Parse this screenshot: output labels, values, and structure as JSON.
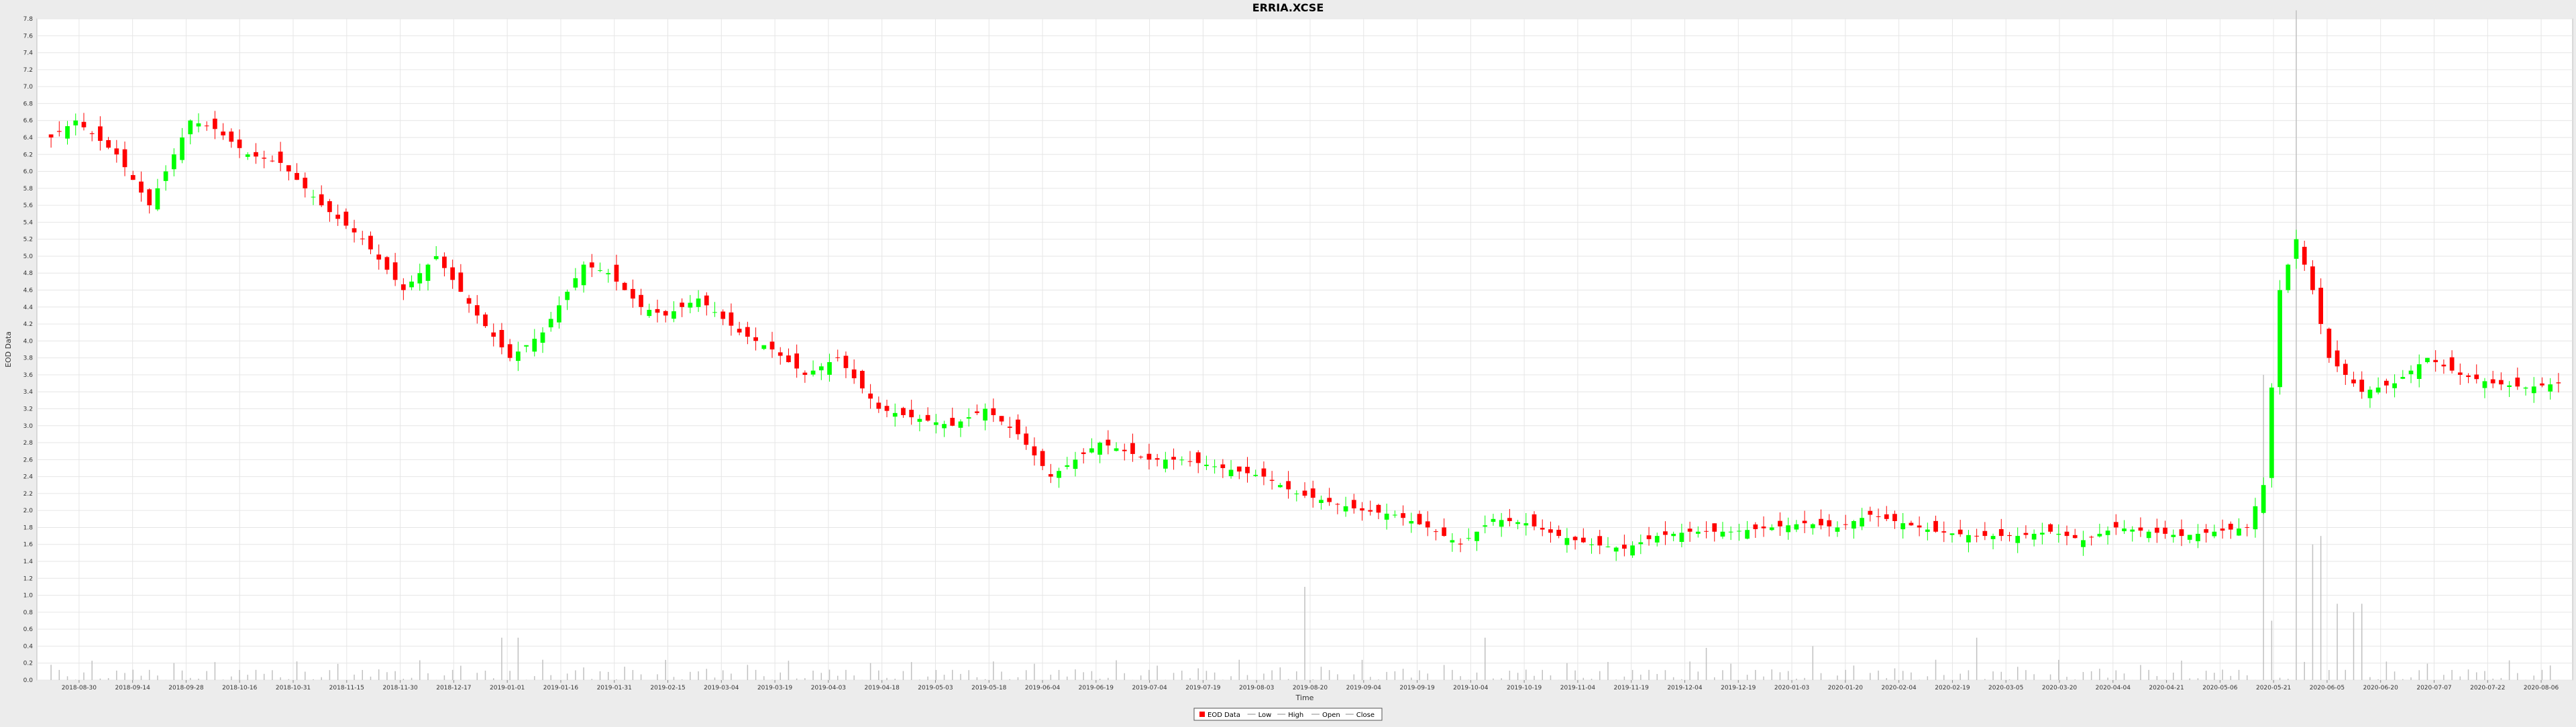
{
  "chart_data": {
    "type": "candlestick",
    "title": "ERRIA.XCSE",
    "xlabel": "Time",
    "ylabel": "EOD Data",
    "ylim": [
      0.0,
      7.8
    ],
    "y_ticks": [
      0.0,
      0.2,
      0.4,
      0.6,
      0.8,
      1.0,
      1.2,
      1.4,
      1.6,
      1.8,
      2.0,
      2.2,
      2.4,
      2.6,
      2.8,
      3.0,
      3.2,
      3.4,
      3.6,
      3.8,
      4.0,
      4.2,
      4.4,
      4.6,
      4.8,
      5.0,
      5.2,
      5.4,
      5.6,
      5.8,
      6.0,
      6.2,
      6.4,
      6.6,
      6.8,
      7.0,
      7.2,
      7.4,
      7.6,
      7.8
    ],
    "x_ticks": [
      "2018-08-30",
      "2018-09-14",
      "2018-09-28",
      "2018-10-16",
      "2018-10-31",
      "2018-11-15",
      "2018-11-30",
      "2018-12-17",
      "2019-01-01",
      "2019-01-16",
      "2019-01-31",
      "2019-02-15",
      "2019-03-04",
      "2019-03-19",
      "2019-04-03",
      "2019-04-18",
      "2019-05-03",
      "2019-05-18",
      "2019-06-04",
      "2019-06-19",
      "2019-07-04",
      "2019-07-19",
      "2019-08-03",
      "2019-08-20",
      "2019-09-04",
      "2019-09-19",
      "2019-10-04",
      "2019-10-19",
      "2019-11-04",
      "2019-11-19",
      "2019-12-04",
      "2019-12-19",
      "2020-01-03",
      "2020-01-20",
      "2020-02-04",
      "2020-02-19",
      "2020-03-05",
      "2020-03-20",
      "2020-04-04",
      "2020-04-21",
      "2020-05-06",
      "2020-05-21",
      "2020-06-05",
      "2020-06-20",
      "2020-07-07",
      "2020-07-22",
      "2020-08-06"
    ],
    "grid": true,
    "legend_position": "bottom",
    "colors": {
      "up": "#00ff00",
      "down": "#ff0000",
      "volume": "#c0c0c0",
      "grid": "#e6e6e6",
      "plot_bg": "#ffffff",
      "page_bg": "#ececec"
    },
    "legend": [
      "EOD Data",
      "Low",
      "High",
      "Open",
      "Close"
    ],
    "series": [
      {
        "name": "Close",
        "anchors": [
          [
            0,
            6.4
          ],
          [
            3,
            6.6
          ],
          [
            8,
            6.2
          ],
          [
            12,
            5.6
          ],
          [
            17,
            6.6
          ],
          [
            20,
            6.5
          ],
          [
            24,
            6.2
          ],
          [
            28,
            6.1
          ],
          [
            33,
            5.6
          ],
          [
            38,
            5.2
          ],
          [
            43,
            4.6
          ],
          [
            47,
            5.0
          ],
          [
            52,
            4.3
          ],
          [
            56,
            3.8
          ],
          [
            60,
            4.1
          ],
          [
            65,
            4.9
          ],
          [
            68,
            4.8
          ],
          [
            72,
            4.4
          ],
          [
            75,
            4.3
          ],
          [
            79,
            4.5
          ],
          [
            84,
            4.1
          ],
          [
            88,
            3.9
          ],
          [
            92,
            3.6
          ],
          [
            96,
            3.8
          ],
          [
            101,
            3.2
          ],
          [
            105,
            3.1
          ],
          [
            110,
            3.0
          ],
          [
            114,
            3.2
          ],
          [
            118,
            2.9
          ],
          [
            122,
            2.4
          ],
          [
            128,
            2.8
          ],
          [
            134,
            2.6
          ],
          [
            138,
            2.6
          ],
          [
            143,
            2.5
          ],
          [
            148,
            2.4
          ],
          [
            152,
            2.2
          ],
          [
            156,
            2.1
          ],
          [
            160,
            2.0
          ],
          [
            164,
            1.95
          ],
          [
            168,
            1.8
          ],
          [
            172,
            1.6
          ],
          [
            176,
            1.9
          ],
          [
            180,
            1.85
          ],
          [
            184,
            1.7
          ],
          [
            188,
            1.6
          ],
          [
            192,
            1.55
          ],
          [
            196,
            1.7
          ],
          [
            200,
            1.75
          ],
          [
            205,
            1.75
          ],
          [
            210,
            1.8
          ],
          [
            214,
            1.85
          ],
          [
            218,
            1.8
          ],
          [
            222,
            1.95
          ],
          [
            226,
            1.85
          ],
          [
            230,
            1.75
          ],
          [
            235,
            1.7
          ],
          [
            240,
            1.7
          ],
          [
            244,
            1.75
          ],
          [
            248,
            1.65
          ],
          [
            252,
            1.8
          ],
          [
            256,
            1.75
          ],
          [
            260,
            1.7
          ],
          [
            264,
            1.75
          ],
          [
            268,
            1.8
          ],
          [
            270,
            2.3
          ],
          [
            272,
            4.6
          ],
          [
            274,
            5.2
          ],
          [
            276,
            4.6
          ],
          [
            278,
            3.8
          ],
          [
            280,
            3.6
          ],
          [
            282,
            3.4
          ],
          [
            286,
            3.5
          ],
          [
            290,
            3.8
          ],
          [
            294,
            3.6
          ],
          [
            298,
            3.5
          ],
          [
            302,
            3.45
          ],
          [
            306,
            3.5
          ]
        ]
      },
      {
        "name": "Volume",
        "spikes": [
          [
            55,
            0.5
          ],
          [
            57,
            0.5
          ],
          [
            153,
            1.1
          ],
          [
            175,
            0.5
          ],
          [
            202,
            0.38
          ],
          [
            215,
            0.4
          ],
          [
            235,
            0.5
          ],
          [
            270,
            3.6
          ],
          [
            271,
            0.7
          ],
          [
            274,
            7.9
          ],
          [
            276,
            1.6
          ],
          [
            277,
            1.7
          ],
          [
            279,
            0.9
          ],
          [
            281,
            0.8
          ],
          [
            282,
            0.9
          ]
        ]
      }
    ]
  }
}
